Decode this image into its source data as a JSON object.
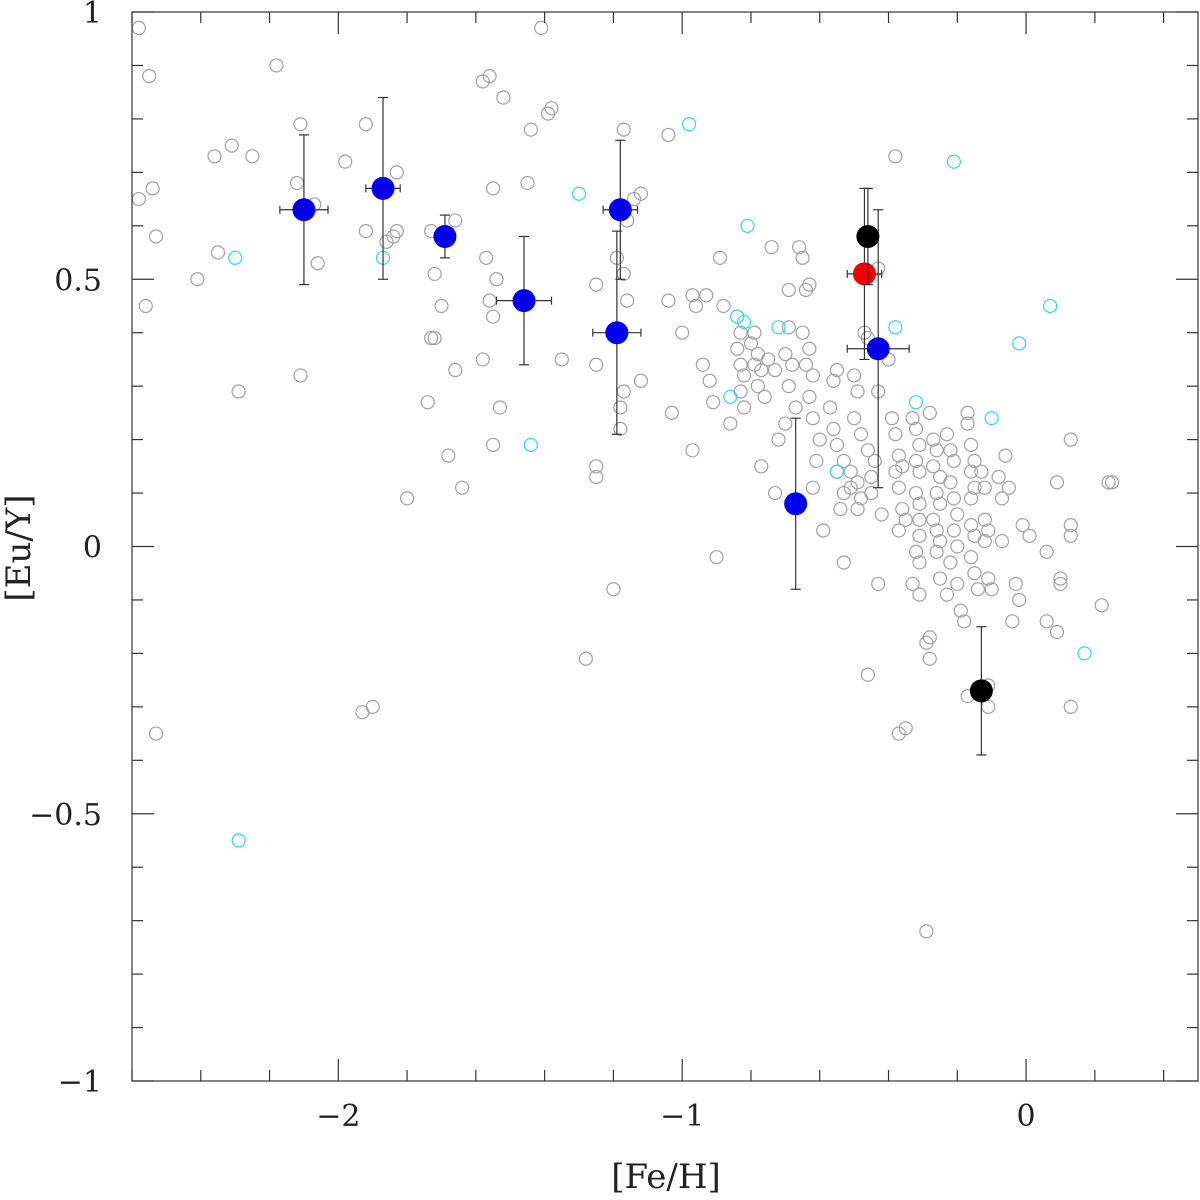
{
  "chart_data": {
    "type": "scatter",
    "xlabel": "[Fe/H]",
    "ylabel": "[Eu/Y]",
    "xlim": [
      -2.6,
      0.5
    ],
    "ylim": [
      -1,
      1
    ],
    "x_ticks": [
      -2,
      -1,
      0
    ],
    "x_tick_labels": [
      "−2",
      "−1",
      "0"
    ],
    "y_ticks": [
      -1,
      -0.5,
      0,
      0.5,
      1
    ],
    "y_tick_labels": [
      "−1",
      "−0.5",
      "0",
      "0.5",
      "1"
    ],
    "x_minor_step": 0.2,
    "y_minor_step": 0.1,
    "grid": false,
    "legend": "none",
    "colors": {
      "field": "#a0a0a0",
      "field_alt": "#33d6e6",
      "blue": "#0000ee",
      "red": "#ee0000",
      "black": "#000000",
      "errorbar": "#333333",
      "axis": "#333333"
    },
    "series": [
      {
        "marker": "open-circle",
        "color": "#a0a0a0",
        "points": [
          [
            -2.58,
            0.97
          ],
          [
            -2.55,
            0.88
          ],
          [
            -2.58,
            0.65
          ],
          [
            -2.54,
            0.67
          ],
          [
            -2.53,
            0.58
          ],
          [
            -2.56,
            0.45
          ],
          [
            -2.53,
            -0.35
          ],
          [
            -2.36,
            0.73
          ],
          [
            -2.31,
            0.75
          ],
          [
            -2.25,
            0.73
          ],
          [
            -2.35,
            0.55
          ],
          [
            -2.41,
            0.5
          ],
          [
            -2.29,
            0.29
          ],
          [
            -2.18,
            0.9
          ],
          [
            -2.11,
            0.79
          ],
          [
            -2.12,
            0.68
          ],
          [
            -2.07,
            0.64
          ],
          [
            -2.06,
            0.53
          ],
          [
            -2.11,
            0.32
          ],
          [
            -1.98,
            0.72
          ],
          [
            -1.92,
            0.79
          ],
          [
            -1.92,
            0.59
          ],
          [
            -1.86,
            0.57
          ],
          [
            -1.83,
            0.7
          ],
          [
            -1.83,
            0.59
          ],
          [
            -1.84,
            0.58
          ],
          [
            -1.8,
            0.09
          ],
          [
            -1.93,
            -0.31
          ],
          [
            -1.9,
            -0.3
          ],
          [
            -1.73,
            0.59
          ],
          [
            -1.72,
            0.51
          ],
          [
            -1.7,
            0.45
          ],
          [
            -1.72,
            0.39
          ],
          [
            -1.73,
            0.39
          ],
          [
            -1.74,
            0.27
          ],
          [
            -1.66,
            0.61
          ],
          [
            -1.66,
            0.33
          ],
          [
            -1.68,
            0.17
          ],
          [
            -1.64,
            0.11
          ],
          [
            -1.58,
            0.87
          ],
          [
            -1.56,
            0.88
          ],
          [
            -1.52,
            0.84
          ],
          [
            -1.57,
            0.54
          ],
          [
            -1.56,
            0.46
          ],
          [
            -1.54,
            0.5
          ],
          [
            -1.55,
            0.43
          ],
          [
            -1.58,
            0.35
          ],
          [
            -1.53,
            0.26
          ],
          [
            -1.55,
            0.19
          ],
          [
            -1.55,
            0.67
          ],
          [
            -1.44,
            0.78
          ],
          [
            -1.45,
            0.68
          ],
          [
            -1.41,
            0.97
          ],
          [
            -1.39,
            0.81
          ],
          [
            -1.38,
            0.82
          ],
          [
            -1.35,
            0.35
          ],
          [
            -1.28,
            -0.21
          ],
          [
            -1.25,
            0.49
          ],
          [
            -1.25,
            0.34
          ],
          [
            -1.25,
            0.15
          ],
          [
            -1.25,
            0.13
          ],
          [
            -1.2,
            -0.08
          ],
          [
            -1.17,
            0.78
          ],
          [
            -1.14,
            0.65
          ],
          [
            -1.16,
            0.61
          ],
          [
            -1.17,
            0.51
          ],
          [
            -1.18,
            0.26
          ],
          [
            -1.17,
            0.29
          ],
          [
            -1.16,
            0.46
          ],
          [
            -1.19,
            0.54
          ],
          [
            -1.18,
            0.22
          ],
          [
            -1.12,
            0.66
          ],
          [
            -1.12,
            0.31
          ],
          [
            -1.04,
            0.77
          ],
          [
            -1.04,
            0.46
          ],
          [
            -1.0,
            0.4
          ],
          [
            -1.03,
            0.25
          ],
          [
            -0.97,
            0.47
          ],
          [
            -0.97,
            0.18
          ],
          [
            -0.96,
            0.45
          ],
          [
            -0.93,
            0.47
          ],
          [
            -0.94,
            0.34
          ],
          [
            -0.92,
            0.31
          ],
          [
            -0.91,
            0.27
          ],
          [
            -0.9,
            -0.02
          ],
          [
            -0.89,
            0.54
          ],
          [
            -0.88,
            0.45
          ],
          [
            -0.86,
            0.23
          ],
          [
            -0.84,
            0.43
          ],
          [
            -0.83,
            0.4
          ],
          [
            -0.84,
            0.37
          ],
          [
            -0.83,
            0.34
          ],
          [
            -0.82,
            0.32
          ],
          [
            -0.83,
            0.29
          ],
          [
            -0.82,
            0.26
          ],
          [
            -0.79,
            0.4
          ],
          [
            -0.8,
            0.38
          ],
          [
            -0.78,
            0.36
          ],
          [
            -0.79,
            0.34
          ],
          [
            -0.77,
            0.33
          ],
          [
            -0.78,
            0.3
          ],
          [
            -0.76,
            0.28
          ],
          [
            -0.77,
            0.15
          ],
          [
            -0.74,
            0.56
          ],
          [
            -0.75,
            0.35
          ],
          [
            -0.73,
            0.33
          ],
          [
            -0.72,
            0.2
          ],
          [
            -0.73,
            0.1
          ],
          [
            -0.69,
            0.48
          ],
          [
            -0.69,
            0.41
          ],
          [
            -0.7,
            0.36
          ],
          [
            -0.68,
            0.34
          ],
          [
            -0.69,
            0.3
          ],
          [
            -0.67,
            0.26
          ],
          [
            -0.7,
            0.23
          ],
          [
            -0.66,
            0.56
          ],
          [
            -0.65,
            0.54
          ],
          [
            -0.64,
            0.48
          ],
          [
            -0.63,
            0.49
          ],
          [
            -0.65,
            0.4
          ],
          [
            -0.63,
            0.37
          ],
          [
            -0.64,
            0.34
          ],
          [
            -0.62,
            0.32
          ],
          [
            -0.63,
            0.28
          ],
          [
            -0.62,
            0.24
          ],
          [
            -0.6,
            0.2
          ],
          [
            -0.61,
            0.16
          ],
          [
            -0.62,
            0.11
          ],
          [
            -0.59,
            0.03
          ],
          [
            -0.57,
            0.26
          ],
          [
            -0.56,
            0.31
          ],
          [
            -0.55,
            0.33
          ],
          [
            -0.56,
            0.22
          ],
          [
            -0.55,
            0.19
          ],
          [
            -0.53,
            0.16
          ],
          [
            -0.55,
            0.14
          ],
          [
            -0.53,
            0.1
          ],
          [
            -0.54,
            0.07
          ],
          [
            -0.53,
            -0.03
          ],
          [
            -0.51,
            0.14
          ],
          [
            -0.51,
            0.11
          ],
          [
            -0.5,
            0.32
          ],
          [
            -0.49,
            0.29
          ],
          [
            -0.5,
            0.24
          ],
          [
            -0.48,
            0.21
          ],
          [
            -0.49,
            0.12
          ],
          [
            -0.48,
            0.09
          ],
          [
            -0.49,
            0.07
          ],
          [
            -0.47,
            0.4
          ],
          [
            -0.46,
            0.39
          ],
          [
            -0.46,
            0.18
          ],
          [
            -0.44,
            0.16
          ],
          [
            -0.45,
            0.13
          ],
          [
            -0.45,
            0.1
          ],
          [
            -0.46,
            -0.24
          ],
          [
            -0.43,
            0.52
          ],
          [
            -0.43,
            0.29
          ],
          [
            -0.42,
            0.06
          ],
          [
            -0.43,
            -0.07
          ],
          [
            -0.4,
            0.35
          ],
          [
            -0.38,
            0.73
          ],
          [
            -0.39,
            0.24
          ],
          [
            -0.38,
            0.21
          ],
          [
            -0.37,
            0.17
          ],
          [
            -0.36,
            0.15
          ],
          [
            -0.38,
            0.14
          ],
          [
            -0.37,
            0.11
          ],
          [
            -0.36,
            0.07
          ],
          [
            -0.35,
            0.05
          ],
          [
            -0.37,
            0.03
          ],
          [
            -0.37,
            -0.35
          ],
          [
            -0.35,
            -0.34
          ],
          [
            -0.33,
            0.24
          ],
          [
            -0.32,
            0.22
          ],
          [
            -0.31,
            0.19
          ],
          [
            -0.32,
            0.16
          ],
          [
            -0.31,
            0.14
          ],
          [
            -0.32,
            0.1
          ],
          [
            -0.31,
            0.08
          ],
          [
            -0.31,
            0.05
          ],
          [
            -0.31,
            0.02
          ],
          [
            -0.32,
            -0.01
          ],
          [
            -0.31,
            -0.03
          ],
          [
            -0.33,
            -0.07
          ],
          [
            -0.31,
            -0.09
          ],
          [
            -0.29,
            -0.18
          ],
          [
            -0.28,
            -0.17
          ],
          [
            -0.28,
            -0.21
          ],
          [
            -0.29,
            -0.72
          ],
          [
            -0.28,
            0.25
          ],
          [
            -0.27,
            0.2
          ],
          [
            -0.26,
            0.18
          ],
          [
            -0.27,
            0.15
          ],
          [
            -0.25,
            0.13
          ],
          [
            -0.26,
            0.1
          ],
          [
            -0.25,
            0.08
          ],
          [
            -0.27,
            0.05
          ],
          [
            -0.26,
            0.03
          ],
          [
            -0.25,
            0.01
          ],
          [
            -0.26,
            -0.01
          ],
          [
            -0.25,
            -0.06
          ],
          [
            -0.23,
            -0.09
          ],
          [
            -0.23,
            0.21
          ],
          [
            -0.22,
            0.18
          ],
          [
            -0.21,
            0.16
          ],
          [
            -0.22,
            0.12
          ],
          [
            -0.21,
            0.09
          ],
          [
            -0.2,
            0.06
          ],
          [
            -0.21,
            0.03
          ],
          [
            -0.2,
            0.0
          ],
          [
            -0.22,
            -0.03
          ],
          [
            -0.2,
            -0.07
          ],
          [
            -0.19,
            -0.12
          ],
          [
            -0.18,
            -0.14
          ],
          [
            -0.17,
            0.25
          ],
          [
            -0.17,
            0.23
          ],
          [
            -0.16,
            0.19
          ],
          [
            -0.15,
            0.16
          ],
          [
            -0.16,
            0.14
          ],
          [
            -0.15,
            0.11
          ],
          [
            -0.16,
            0.09
          ],
          [
            -0.16,
            0.04
          ],
          [
            -0.15,
            0.02
          ],
          [
            -0.16,
            -0.02
          ],
          [
            -0.15,
            -0.05
          ],
          [
            -0.14,
            -0.08
          ],
          [
            -0.17,
            -0.28
          ],
          [
            -0.13,
            0.14
          ],
          [
            -0.12,
            0.11
          ],
          [
            -0.12,
            0.05
          ],
          [
            -0.11,
            0.03
          ],
          [
            -0.12,
            0.01
          ],
          [
            -0.11,
            -0.06
          ],
          [
            -0.1,
            -0.08
          ],
          [
            -0.11,
            -0.26
          ],
          [
            -0.11,
            -0.3
          ],
          [
            -0.08,
            0.13
          ],
          [
            -0.07,
            0.09
          ],
          [
            -0.06,
            0.17
          ],
          [
            -0.05,
            0.11
          ],
          [
            -0.07,
            0.01
          ],
          [
            -0.04,
            -0.14
          ],
          [
            -0.03,
            -0.07
          ],
          [
            -0.02,
            -0.1
          ],
          [
            -0.01,
            0.04
          ],
          [
            0.01,
            0.02
          ],
          [
            0.06,
            -0.01
          ],
          [
            0.06,
            -0.14
          ],
          [
            0.09,
            0.12
          ],
          [
            0.1,
            -0.06
          ],
          [
            0.1,
            -0.07
          ],
          [
            0.09,
            -0.16
          ],
          [
            0.13,
            0.2
          ],
          [
            0.13,
            0.04
          ],
          [
            0.13,
            0.02
          ],
          [
            0.13,
            -0.3
          ],
          [
            0.22,
            -0.11
          ],
          [
            0.24,
            0.12
          ],
          [
            0.25,
            0.12
          ]
        ]
      },
      {
        "marker": "open-circle",
        "color": "#33d6e6",
        "points": [
          [
            -2.3,
            0.54
          ],
          [
            -2.29,
            -0.55
          ],
          [
            -1.87,
            0.54
          ],
          [
            -1.44,
            0.19
          ],
          [
            -1.3,
            0.66
          ],
          [
            -0.98,
            0.79
          ],
          [
            -0.81,
            0.6
          ],
          [
            -0.84,
            0.43
          ],
          [
            -0.82,
            0.42
          ],
          [
            -0.86,
            0.28
          ],
          [
            -0.72,
            0.41
          ],
          [
            -0.55,
            0.14
          ],
          [
            -0.38,
            0.41
          ],
          [
            -0.32,
            0.27
          ],
          [
            -0.21,
            0.72
          ],
          [
            -0.1,
            0.24
          ],
          [
            -0.02,
            0.38
          ],
          [
            0.07,
            0.45
          ],
          [
            0.17,
            -0.2
          ]
        ]
      },
      {
        "marker": "filled-circle",
        "color": "#0000ee",
        "points": [
          {
            "x": -2.1,
            "y": 0.63,
            "xerr": 0.07,
            "yerr": 0.14
          },
          {
            "x": -1.87,
            "y": 0.67,
            "xerr": 0.05,
            "yerr": 0.17
          },
          {
            "x": -1.69,
            "y": 0.58,
            "xerr": 0.03,
            "yerr": 0.04
          },
          {
            "x": -1.46,
            "y": 0.46,
            "xerr": 0.08,
            "yerr": 0.12
          },
          {
            "x": -1.18,
            "y": 0.63,
            "xerr": 0.05,
            "yerr": 0.13
          },
          {
            "x": -1.19,
            "y": 0.4,
            "xerr": 0.07,
            "yerr": 0.19
          },
          {
            "x": -0.67,
            "y": 0.08,
            "xerr": 0.03,
            "yerr": 0.16
          },
          {
            "x": -0.43,
            "y": 0.37,
            "xerr": 0.09,
            "yerr": 0.26
          }
        ]
      },
      {
        "marker": "filled-circle",
        "color": "#ee0000",
        "points": [
          {
            "x": -0.47,
            "y": 0.51,
            "xerr": 0.05,
            "yerr": 0.16
          }
        ]
      },
      {
        "marker": "filled-circle",
        "color": "#000000",
        "points": [
          {
            "x": -0.46,
            "y": 0.58,
            "xerr": 0.0,
            "yerr": 0.09
          },
          {
            "x": -0.13,
            "y": -0.27,
            "xerr": 0.0,
            "yerr": 0.12
          }
        ]
      }
    ]
  }
}
